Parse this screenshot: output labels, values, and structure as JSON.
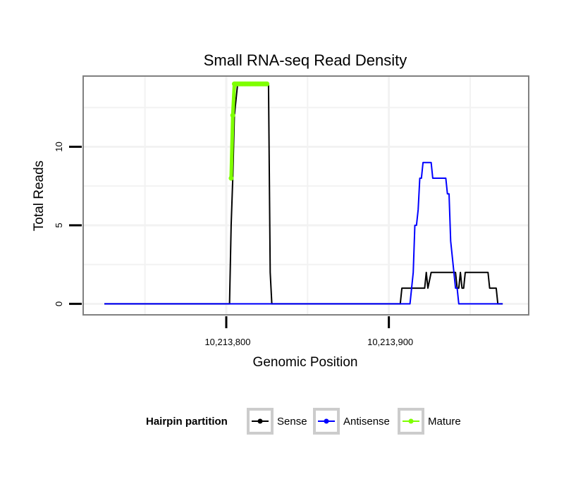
{
  "chart_data": {
    "type": "line",
    "title": "Small RNA-seq Read Density",
    "xlabel": "Genomic Position",
    "ylabel": "Total Reads",
    "xlim": [
      10213712,
      10213986
    ],
    "ylim": [
      -0.7,
      14.5
    ],
    "x_ticks": [
      {
        "value": 10213800,
        "label": "10,213,800"
      },
      {
        "value": 10213900,
        "label": "10,213,900"
      }
    ],
    "x_minor_gridlines": [
      10213750,
      10213850,
      10213950
    ],
    "y_ticks": [
      {
        "value": 0,
        "label": "0"
      },
      {
        "value": 5,
        "label": "5"
      },
      {
        "value": 10,
        "label": "10"
      }
    ],
    "y_minor_gridlines": [
      2.5,
      7.5,
      12.5
    ],
    "legend": {
      "title": "Hairpin partition",
      "position": "bottom",
      "entries": [
        {
          "label": "Sense",
          "color": "#000000"
        },
        {
          "label": "Antisense",
          "color": "#0000ff"
        },
        {
          "label": "Mature",
          "color": "#7fff00"
        }
      ]
    },
    "series": [
      {
        "name": "Sense",
        "color": "#000000",
        "x": [
          10213725,
          10213802,
          10213803,
          10213804,
          10213805,
          10213806,
          10213807,
          10213808,
          10213809,
          10213810,
          10213815,
          10213820,
          10213825,
          10213826,
          10213827,
          10213828,
          10213850,
          10213880,
          10213907,
          10213908,
          10213916,
          10213920,
          10213922,
          10213923,
          10213924,
          10213926,
          10213932,
          10213936,
          10213940,
          10213941,
          10213942,
          10213943,
          10213944,
          10213945,
          10213946,
          10213947,
          10213948,
          10213950,
          10213961,
          10213962,
          10213966,
          10213967,
          10213970
        ],
        "y": [
          0,
          0,
          5,
          8,
          12,
          13,
          14,
          14,
          14,
          14,
          14,
          14,
          14,
          14,
          2,
          0,
          0,
          0,
          0,
          1,
          1,
          1,
          1,
          2,
          1,
          2,
          2,
          2,
          2,
          2,
          1,
          1,
          2,
          1,
          1,
          2,
          2,
          2,
          2,
          1,
          1,
          0,
          0
        ]
      },
      {
        "name": "Antisense",
        "color": "#0000ff",
        "x": [
          10213725,
          10213910,
          10213912,
          10213913,
          10213914,
          10213915,
          10213916,
          10213917,
          10213918,
          10213919,
          10213920,
          10213921,
          10213922,
          10213923,
          10213924,
          10213925,
          10213926,
          10213927,
          10213928,
          10213929,
          10213930,
          10213931,
          10213932,
          10213933,
          10213934,
          10213935,
          10213936,
          10213937,
          10213938,
          10213939,
          10213940,
          10213941,
          10213942,
          10213943,
          10213944,
          10213945,
          10213946,
          10213947,
          10213948,
          10213950,
          10213970
        ],
        "y": [
          0,
          0,
          0,
          0,
          1,
          2,
          5,
          5,
          6,
          8,
          8,
          9,
          9,
          9,
          9,
          9,
          9,
          8,
          8,
          8,
          8,
          8,
          8,
          8,
          8,
          8,
          7,
          7,
          4,
          3,
          2,
          1,
          1,
          0,
          0,
          0,
          0,
          0,
          0,
          0,
          0
        ]
      },
      {
        "name": "Mature",
        "color": "#7fff00",
        "x": [
          10213803,
          10213804,
          10213805,
          10213806,
          10213807,
          10213808,
          10213809,
          10213810,
          10213811,
          10213812,
          10213813,
          10213814,
          10213815,
          10213816,
          10213817,
          10213818,
          10213819,
          10213820,
          10213821,
          10213822,
          10213823,
          10213824,
          10213825
        ],
        "y": [
          8,
          12,
          14,
          14,
          14,
          14,
          14,
          14,
          14,
          14,
          14,
          14,
          14,
          14,
          14,
          14,
          14,
          14,
          14,
          14,
          14,
          14,
          14
        ]
      }
    ]
  }
}
